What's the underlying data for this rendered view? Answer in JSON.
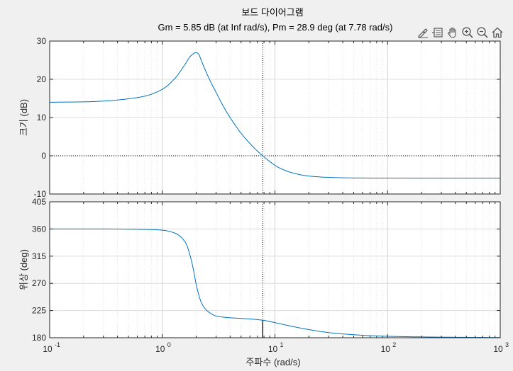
{
  "chart_data": [
    {
      "type": "line",
      "title": "보드 다이어그램",
      "subtitle": "Gm = 5.85 dB (at Inf rad/s),  Pm = 28.9 deg (at 7.78 rad/s)",
      "xlabel": "",
      "ylabel": "크기 (dB)",
      "xscale": "log",
      "xlim": [
        0.1,
        1000
      ],
      "ylim": [
        -10,
        30
      ],
      "yticks": [
        "-10",
        "0",
        "10",
        "20",
        "30"
      ],
      "grid": true,
      "series": [
        {
          "x": [
            0.1,
            0.2,
            0.3,
            0.5,
            0.7,
            1.0,
            1.3,
            1.6,
            1.8,
            2.0,
            2.1,
            2.2,
            2.4,
            2.7,
            3.0,
            3.5,
            4.0,
            5.0,
            6.0,
            7.0,
            7.78,
            9.0,
            11,
            14,
            20,
            30,
            50,
            100,
            300,
            1000
          ],
          "y": [
            14.0,
            14.1,
            14.3,
            14.9,
            15.6,
            17.4,
            20.3,
            24.0,
            26.2,
            27.0,
            26.6,
            25.2,
            22.5,
            19.2,
            16.6,
            12.8,
            10.0,
            5.9,
            3.2,
            1.2,
            0.0,
            -1.5,
            -3.2,
            -4.4,
            -5.3,
            -5.65,
            -5.8,
            -5.84,
            -5.85,
            -5.85
          ]
        }
      ],
      "reference_lines": [
        {
          "axis": "y",
          "value": 0,
          "style": "dotted"
        },
        {
          "axis": "x",
          "value": 7.78,
          "style": "dotted"
        }
      ]
    },
    {
      "type": "line",
      "xlabel": "주파수  (rad/s)",
      "ylabel": "위상 (deg)",
      "xscale": "log",
      "xlim": [
        0.1,
        1000
      ],
      "ylim": [
        180,
        405
      ],
      "xticks": [
        "10",
        "10",
        "10",
        "10",
        "10"
      ],
      "xtick_exponents": [
        "-1",
        "0",
        "1",
        "2",
        "3"
      ],
      "yticks": [
        "180",
        "225",
        "270",
        "315",
        "360",
        "405"
      ],
      "grid": true,
      "series": [
        {
          "x": [
            0.1,
            0.3,
            0.5,
            0.8,
            1.0,
            1.3,
            1.6,
            1.8,
            1.9,
            2.0,
            2.1,
            2.2,
            2.4,
            2.7,
            3.0,
            3.5,
            4.0,
            5.0,
            6.0,
            7.78,
            10,
            14,
            20,
            30,
            50,
            100,
            300,
            1000
          ],
          "y": [
            360,
            360,
            359.6,
            359,
            358,
            353,
            338,
            310,
            290,
            268,
            252,
            240,
            228,
            220,
            216,
            214,
            213,
            212,
            211,
            209,
            205,
            199,
            193.5,
            188.5,
            185,
            182.3,
            181,
            180.3
          ]
        }
      ],
      "reference_lines": [
        {
          "axis": "y",
          "value": 180,
          "style": "dotted"
        },
        {
          "axis": "x",
          "value": 7.78,
          "style": "dotted"
        }
      ],
      "markers": [
        {
          "x": 7.78,
          "y_from": 180,
          "y_to": 208.9
        }
      ]
    }
  ],
  "colors": {
    "series": "#0072bd",
    "axes_bg": "#ffffff",
    "figure_bg": "#f0f0f0",
    "grid": "#dcdcdc"
  },
  "toolbar": {
    "items": [
      "brush-icon",
      "data-tips-icon",
      "pan-icon",
      "zoom-in-icon",
      "zoom-out-icon",
      "home-icon"
    ]
  }
}
